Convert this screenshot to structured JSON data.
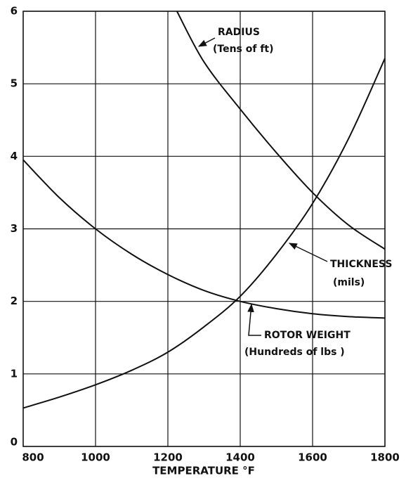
{
  "chart_data": {
    "type": "line",
    "x_label": "TEMPERATURE °F",
    "xlim": [
      800,
      1800
    ],
    "xticks": [
      800,
      1000,
      1200,
      1400,
      1600,
      1800
    ],
    "ylim": [
      0,
      6
    ],
    "yticks": [
      0,
      1,
      2,
      3,
      4,
      5,
      6
    ],
    "grid": true,
    "series": [
      {
        "name": "RADIUS",
        "unit": "(Tens of ft)",
        "color": "#111111",
        "x": [
          1225,
          1300,
          1400,
          1500,
          1600,
          1700,
          1800
        ],
        "values": [
          6,
          5.3,
          4.65,
          4.05,
          3.5,
          3.05,
          2.72
        ]
      },
      {
        "name": "THICKNESS",
        "unit": "(mils)",
        "color": "#111111",
        "x": [
          800,
          900,
          1000,
          1100,
          1200,
          1300,
          1400,
          1500,
          1600,
          1700,
          1800
        ],
        "values": [
          0.53,
          0.68,
          0.85,
          1.05,
          1.3,
          1.65,
          2.07,
          2.65,
          3.35,
          4.25,
          5.35
        ]
      },
      {
        "name": "ROTOR WEIGHT",
        "unit": "(Hundreds of lbs )",
        "color": "#111111",
        "x": [
          800,
          900,
          1000,
          1100,
          1200,
          1300,
          1400,
          1500,
          1600,
          1700,
          1800
        ],
        "values": [
          3.95,
          3.43,
          3.0,
          2.65,
          2.37,
          2.15,
          2.0,
          1.9,
          1.83,
          1.79,
          1.77
        ]
      }
    ]
  }
}
